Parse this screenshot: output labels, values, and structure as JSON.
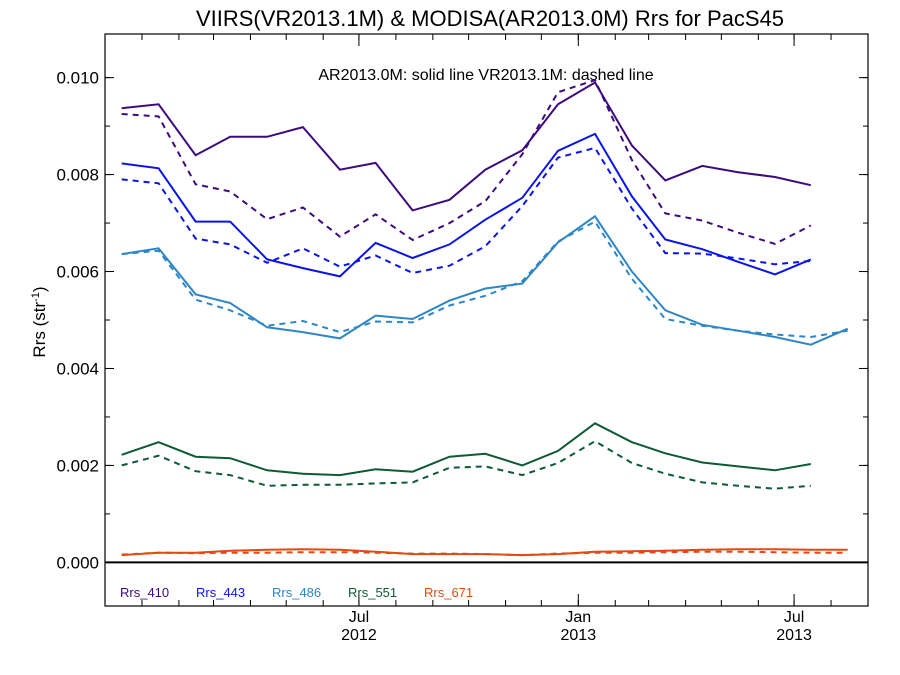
{
  "chart_data": {
    "type": "line",
    "title": "VIIRS(VR2013.1M) & MODISA(AR2013.0M)  Rrs for PacS45",
    "annotation": "AR2013.0M: solid line   VR2013.1M: dashed line",
    "ylabel_main": "Rrs (str",
    "ylabel_sup": "-1",
    "ylabel_close": ")",
    "ylim": [
      -0.0009,
      0.0109
    ],
    "yticks": [
      "0.000",
      "0.002",
      "0.004",
      "0.006",
      "0.008",
      "0.010"
    ],
    "ytick_values": [
      0.0,
      0.002,
      0.004,
      0.006,
      0.008,
      0.01
    ],
    "xlim": [
      "2011-12-01",
      "2013-09-01"
    ],
    "xticks": [
      {
        "date": "2012-07-01",
        "month": "Jul",
        "year": "2012"
      },
      {
        "date": "2013-01-01",
        "month": "Jan",
        "year": "2013"
      },
      {
        "date": "2013-07-01",
        "month": "Jul",
        "year": "2013"
      }
    ],
    "grid": false,
    "legend_position": "bottom-left",
    "x": [
      "2011-12-15",
      "2012-01-15",
      "2012-02-15",
      "2012-03-15",
      "2012-04-15",
      "2012-05-15",
      "2012-06-15",
      "2012-07-15",
      "2012-08-15",
      "2012-09-15",
      "2012-10-15",
      "2012-11-15",
      "2012-12-15",
      "2013-01-15",
      "2013-02-15",
      "2013-03-15",
      "2013-04-15",
      "2013-05-15",
      "2013-06-15",
      "2013-07-15",
      "2013-08-15"
    ],
    "series": [
      {
        "name": "Rrs_410",
        "color": "#3d0b7e",
        "solid": [
          0.00937,
          0.00945,
          0.0084,
          0.00878,
          0.00878,
          0.00898,
          0.0081,
          0.00824,
          0.00726,
          0.00748,
          0.0081,
          0.0085,
          0.00945,
          0.0099,
          0.0086,
          0.00788,
          0.00818,
          0.00805,
          0.00795,
          0.00778,
          null
        ],
        "dashed": [
          0.00925,
          0.0092,
          0.0078,
          0.00765,
          0.00708,
          0.00732,
          0.00672,
          0.00718,
          0.00665,
          0.007,
          0.00745,
          0.00842,
          0.0097,
          0.00995,
          0.0083,
          0.0072,
          0.00705,
          0.0068,
          0.00657,
          0.00695,
          null
        ]
      },
      {
        "name": "Rrs_443",
        "color": "#0a14e8",
        "solid": [
          0.00823,
          0.00813,
          0.00703,
          0.00703,
          0.00625,
          0.00607,
          0.0059,
          0.00659,
          0.00628,
          0.00656,
          0.00707,
          0.00752,
          0.00849,
          0.00884,
          0.00755,
          0.00666,
          0.00646,
          0.0062,
          0.00594,
          0.00625,
          null
        ],
        "dashed": [
          0.0079,
          0.00782,
          0.00668,
          0.00656,
          0.00618,
          0.00648,
          0.0061,
          0.00633,
          0.00597,
          0.00612,
          0.00652,
          0.00735,
          0.00835,
          0.00855,
          0.0073,
          0.00638,
          0.00637,
          0.00627,
          0.00615,
          0.00622,
          null
        ]
      },
      {
        "name": "Rrs_486",
        "color": "#2e86c6",
        "solid": [
          0.00636,
          0.00648,
          0.00553,
          0.00535,
          0.00485,
          0.00475,
          0.00462,
          0.00509,
          0.00502,
          0.0054,
          0.00565,
          0.00575,
          0.0066,
          0.00714,
          0.006,
          0.0052,
          0.0049,
          0.00478,
          0.00465,
          0.00449,
          0.00482
        ],
        "dashed": [
          0.00636,
          0.00643,
          0.00542,
          0.0052,
          0.00488,
          0.00498,
          0.00475,
          0.00497,
          0.00495,
          0.0053,
          0.0055,
          0.0058,
          0.00662,
          0.00703,
          0.00585,
          0.00502,
          0.00488,
          0.00478,
          0.0047,
          0.00465,
          0.00478
        ]
      },
      {
        "name": "Rrs_551",
        "color": "#0d5a34",
        "solid": [
          0.00222,
          0.00248,
          0.00218,
          0.00215,
          0.0019,
          0.00183,
          0.0018,
          0.00192,
          0.00187,
          0.00218,
          0.00224,
          0.002,
          0.0023,
          0.00287,
          0.00248,
          0.00225,
          0.00206,
          0.00198,
          0.0019,
          0.00203,
          null
        ],
        "dashed": [
          0.002,
          0.0022,
          0.00188,
          0.0018,
          0.00158,
          0.0016,
          0.0016,
          0.00163,
          0.00165,
          0.00195,
          0.00198,
          0.0018,
          0.00205,
          0.0025,
          0.00205,
          0.00183,
          0.00165,
          0.00158,
          0.00152,
          0.00158,
          null
        ]
      },
      {
        "name": "Rrs_671",
        "color": "#e14a12",
        "solid": [
          0.00015,
          0.0002,
          0.0002,
          0.00024,
          0.00026,
          0.00027,
          0.00026,
          0.00022,
          0.00017,
          0.00017,
          0.00017,
          0.00015,
          0.00017,
          0.00022,
          0.00023,
          0.00024,
          0.00026,
          0.00027,
          0.00027,
          0.00026,
          0.00026
        ],
        "dashed": [
          0.00016,
          0.0002,
          0.00019,
          0.0002,
          0.0002,
          0.00021,
          0.00021,
          0.0002,
          0.00018,
          0.00018,
          0.00017,
          0.00015,
          0.00018,
          0.0002,
          0.0002,
          0.00021,
          0.00022,
          0.00022,
          0.00021,
          0.0002,
          0.0002
        ]
      }
    ],
    "zero_line_color": "#000000"
  }
}
